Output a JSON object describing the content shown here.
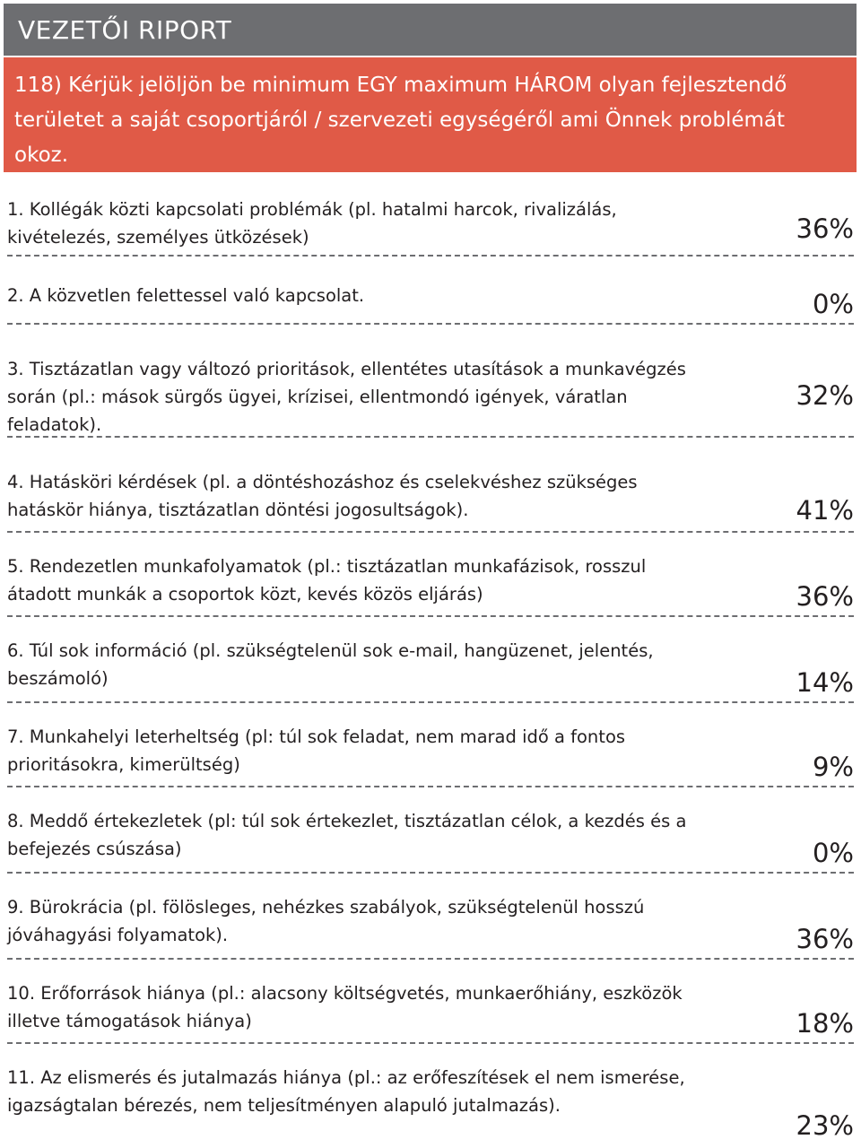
{
  "header": {
    "title": "VEZETŐI RIPORT"
  },
  "question": {
    "text": "118) Kérjük jelöljön be minimum EGY maximum HÁROM olyan fejlesztendő területet a saját csoportjáról / szervezeti egységéről ami Önnek problémát okoz."
  },
  "items": [
    {
      "text": "1. Kollégák közti kapcsolati problémák (pl. hatalmi harcok, rivalizálás, kivételezés, személyes ütközések)",
      "percent": "36%"
    },
    {
      "text": "2. A közvetlen felettessel való kapcsolat.",
      "percent": "0%"
    },
    {
      "text": "3. Tisztázatlan vagy változó prioritások, ellentétes utasítások a munkavégzés során (pl.: mások sürgős ügyei, krízisei, ellentmondó igények, váratlan feladatok).",
      "percent": "32%"
    },
    {
      "text": "4. Hatásköri kérdések (pl. a döntéshozáshoz és cselekvéshez szükséges hatáskör hiánya, tisztázatlan döntési jogosultságok).",
      "percent": "41%"
    },
    {
      "text": "5. Rendezetlen munkafolyamatok (pl.: tisztázatlan munkafázisok, rosszul átadott munkák a csoportok közt, kevés közös eljárás)",
      "percent": "36%"
    },
    {
      "text": "6. Túl sok információ (pl. szükségtelenül sok e-mail, hangüzenet, jelentés, beszámoló)",
      "percent": "14%"
    },
    {
      "text": "7. Munkahelyi leterheltség (pl: túl sok feladat, nem marad idő a fontos prioritásokra, kimerültség)",
      "percent": "9%"
    },
    {
      "text": "8. Meddő értekezletek (pl: túl sok értekezlet, tisztázatlan célok, a kezdés és a befejezés csúszása)",
      "percent": "0%"
    },
    {
      "text": "9. Bürokrácia (pl. fölösleges, nehézkes szabályok, szükségtelenül hosszú jóváhagyási folyamatok).",
      "percent": "36%"
    },
    {
      "text": "10. Erőforrások hiánya (pl.: alacsony költségvetés, munkaerőhiány, eszközök illetve támogatások hiánya)",
      "percent": "18%"
    },
    {
      "text": "11. Az elismerés és jutalmazás hiánya (pl.: az erőfeszítések el nem ismerése, igazságtalan bérezés, nem teljesítményen alapuló jutalmazás).",
      "percent": "23%"
    }
  ]
}
